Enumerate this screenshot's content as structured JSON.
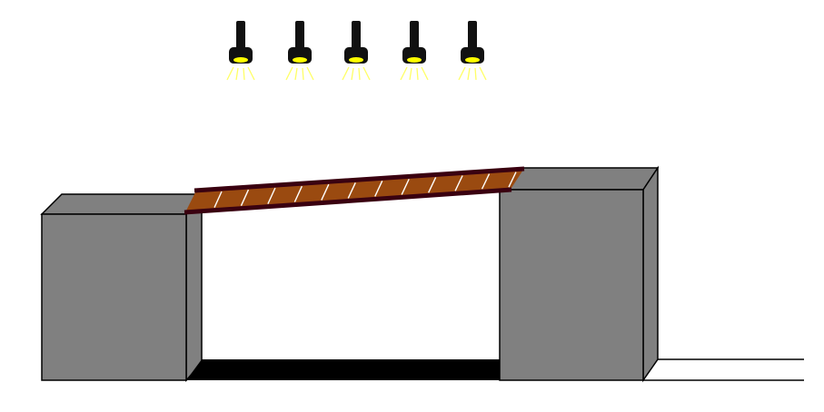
{
  "scene": {
    "lamps": {
      "count": 5,
      "icon": "flashlight-icon",
      "body_color": "#111111",
      "lens_color": "#ffff00",
      "ray_color": "#ffff66"
    },
    "blocks": {
      "icon": "block-icon",
      "front_color": "#808080",
      "side_color": "#808080",
      "top_color": "#808080",
      "outline_color": "#000000"
    },
    "bridge": {
      "icon": "tilted-plank-icon",
      "wood_color": "#9a4a10",
      "edge_color": "#3a0010",
      "slat_color": "#ffffff",
      "slat_count": 12
    },
    "pit": {
      "color": "#000000"
    },
    "ground": {
      "line_color": "#000000"
    }
  }
}
